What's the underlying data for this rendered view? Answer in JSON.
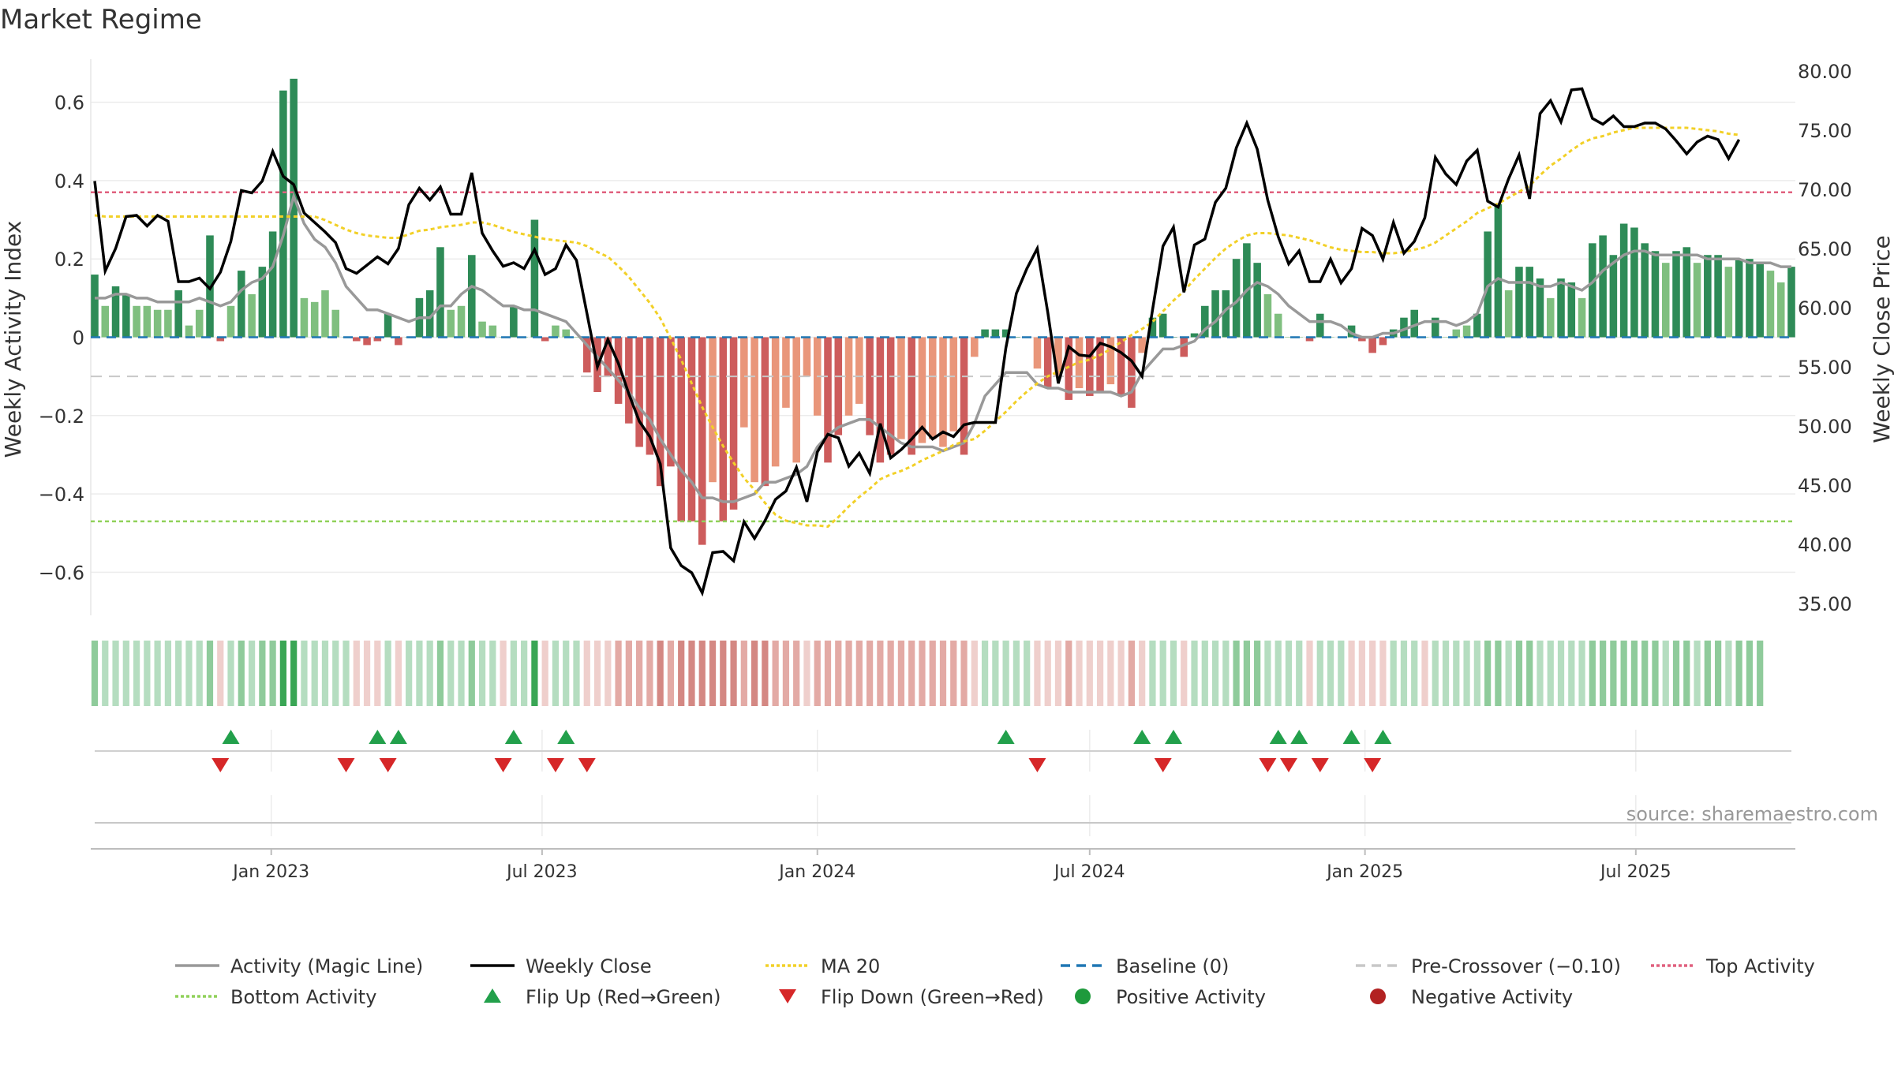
{
  "title": "Market Regime",
  "source": "source: sharemaestro.com",
  "colors": {
    "bar_pos_strong": "#2e8b57",
    "bar_pos_light": "#7fbf7f",
    "bar_neg_strong": "#cd5c5c",
    "bar_neg_light": "#e9967a",
    "close": "#000000",
    "activity_line": "#999999",
    "ma20": "#f2d027",
    "baseline": "#1f77b4",
    "pre_crossover": "#c8c8c8",
    "top_activity": "#e0607e",
    "bottom_activity": "#90d15a",
    "flip_up": "#22a04b",
    "flip_down": "#d62728",
    "positive_activity": "#1e9a3c",
    "negative_activity": "#b22222"
  },
  "chart_data": {
    "type": "bar",
    "title": "Market Regime",
    "x_start": "2022-09-05",
    "x_ticks": [
      "Jan 2023",
      "Jul 2023",
      "Jan 2024",
      "Jul 2024",
      "Jan 2025",
      "Jul 2025"
    ],
    "x_tick_dates": [
      "2023-01-01",
      "2023-07-01",
      "2024-01-01",
      "2024-07-01",
      "2025-01-01",
      "2025-07-01"
    ],
    "y_left": {
      "label": "Weekly Activity Index",
      "ylim": [
        -0.71,
        0.71
      ],
      "ticks": [
        0.6,
        0.4,
        0.2,
        0,
        -0.2,
        -0.4,
        -0.6
      ],
      "tick_labels": [
        "0.6",
        "0.4",
        "0.2",
        "0",
        "−0.2",
        "−0.4",
        "−0.6"
      ]
    },
    "y_right": {
      "label": "Weekly Close Price",
      "ylim": [
        34.0,
        81.0
      ],
      "ticks": [
        80,
        75,
        70,
        65,
        60,
        55,
        50,
        45,
        40,
        35
      ],
      "tick_labels": [
        "80.00",
        "75.00",
        "70.00",
        "65.00",
        "60.00",
        "55.00",
        "50.00",
        "45.00",
        "40.00",
        "35.00"
      ]
    },
    "reference_lines": {
      "baseline": 0,
      "pre_crossover": -0.1,
      "top_activity": 0.37,
      "bottom_activity": -0.47
    },
    "series": [
      {
        "name": "Weekly Activity Index",
        "values": [
          0.16,
          0.08,
          0.13,
          0.11,
          0.08,
          0.08,
          0.07,
          0.07,
          0.12,
          0.03,
          0.07,
          0.26,
          -0.01,
          0.08,
          0.17,
          0.11,
          0.18,
          0.27,
          0.63,
          0.66,
          0.1,
          0.09,
          0.12,
          0.07,
          0.0,
          -0.01,
          -0.02,
          -0.01,
          0.06,
          -0.02,
          0.0,
          0.1,
          0.12,
          0.23,
          0.07,
          0.08,
          0.21,
          0.04,
          0.03,
          0.0,
          0.08,
          0.0,
          0.3,
          -0.01,
          0.03,
          0.02,
          0.0,
          -0.09,
          -0.14,
          -0.1,
          -0.17,
          -0.22,
          -0.28,
          -0.3,
          -0.38,
          -0.33,
          -0.47,
          -0.47,
          -0.53,
          -0.37,
          -0.47,
          -0.44,
          -0.23,
          -0.37,
          -0.38,
          -0.33,
          -0.18,
          -0.32,
          -0.1,
          -0.2,
          -0.32,
          -0.25,
          -0.2,
          -0.17,
          -0.25,
          -0.32,
          -0.3,
          -0.26,
          -0.3,
          -0.27,
          -0.26,
          -0.28,
          -0.24,
          -0.3,
          -0.05,
          0.02,
          0.02,
          0.02,
          0.0,
          0.0,
          -0.08,
          -0.13,
          -0.1,
          -0.16,
          -0.13,
          -0.15,
          -0.14,
          -0.12,
          -0.15,
          -0.18,
          -0.04,
          0.05,
          0.06,
          0.0,
          -0.05,
          0.01,
          0.08,
          0.12,
          0.12,
          0.2,
          0.24,
          0.19,
          0.11,
          0.06,
          0.0,
          0.0,
          -0.01,
          0.06,
          0.0,
          0.0,
          0.03,
          -0.01,
          -0.04,
          -0.02,
          0.02,
          0.05,
          0.07,
          0.0,
          0.05,
          0.0,
          0.02,
          0.03,
          0.06,
          0.27,
          0.34,
          0.12,
          0.18,
          0.18,
          0.15,
          0.1,
          0.15,
          0.14,
          0.1,
          0.24,
          0.26,
          0.21,
          0.29,
          0.28,
          0.24,
          0.22,
          0.19,
          0.22,
          0.23,
          0.19,
          0.21,
          0.21,
          0.18,
          0.2,
          0.2,
          0.19,
          0.17,
          0.14,
          0.18
        ]
      },
      {
        "name": "Activity (Magic Line)",
        "values": [
          0.1,
          0.1,
          0.11,
          0.11,
          0.1,
          0.1,
          0.09,
          0.09,
          0.09,
          0.09,
          0.1,
          0.09,
          0.08,
          0.09,
          0.12,
          0.14,
          0.15,
          0.18,
          0.26,
          0.36,
          0.29,
          0.25,
          0.23,
          0.19,
          0.13,
          0.1,
          0.07,
          0.07,
          0.06,
          0.05,
          0.04,
          0.05,
          0.05,
          0.08,
          0.08,
          0.11,
          0.13,
          0.12,
          0.1,
          0.08,
          0.08,
          0.07,
          0.07,
          0.06,
          0.05,
          0.04,
          0.01,
          -0.02,
          -0.05,
          -0.08,
          -0.11,
          -0.14,
          -0.18,
          -0.21,
          -0.26,
          -0.3,
          -0.34,
          -0.37,
          -0.41,
          -0.41,
          -0.42,
          -0.42,
          -0.41,
          -0.4,
          -0.37,
          -0.37,
          -0.36,
          -0.35,
          -0.33,
          -0.28,
          -0.25,
          -0.23,
          -0.22,
          -0.21,
          -0.21,
          -0.23,
          -0.25,
          -0.27,
          -0.28,
          -0.28,
          -0.28,
          -0.29,
          -0.28,
          -0.27,
          -0.22,
          -0.15,
          -0.12,
          -0.09,
          -0.09,
          -0.09,
          -0.12,
          -0.13,
          -0.13,
          -0.14,
          -0.14,
          -0.14,
          -0.14,
          -0.14,
          -0.15,
          -0.14,
          -0.09,
          -0.06,
          -0.03,
          -0.03,
          -0.02,
          -0.01,
          0.02,
          0.04,
          0.07,
          0.09,
          0.12,
          0.14,
          0.13,
          0.11,
          0.08,
          0.06,
          0.04,
          0.04,
          0.04,
          0.03,
          0.01,
          0.0,
          0.0,
          0.01,
          0.01,
          0.02,
          0.03,
          0.04,
          0.04,
          0.04,
          0.03,
          0.04,
          0.06,
          0.13,
          0.15,
          0.14,
          0.14,
          0.14,
          0.13,
          0.13,
          0.14,
          0.13,
          0.12,
          0.14,
          0.17,
          0.19,
          0.21,
          0.22,
          0.22,
          0.21,
          0.21,
          0.21,
          0.21,
          0.21,
          0.2,
          0.2,
          0.2,
          0.2,
          0.19,
          0.19,
          0.19,
          0.18,
          0.18
        ]
      },
      {
        "name": "Weekly Close",
        "values": [
          70.7,
          63.1,
          65.0,
          67.7,
          67.8,
          66.9,
          67.8,
          67.3,
          62.2,
          62.2,
          62.5,
          61.6,
          63.0,
          65.6,
          69.9,
          69.7,
          70.7,
          73.2,
          71.1,
          70.4,
          68.0,
          67.2,
          66.4,
          65.5,
          63.3,
          62.9,
          63.6,
          64.3,
          63.7,
          65.0,
          68.7,
          70.1,
          69.1,
          70.2,
          67.9,
          67.9,
          71.4,
          66.3,
          64.8,
          63.5,
          63.8,
          63.3,
          64.9,
          62.8,
          63.3,
          65.3,
          64.0,
          59.5,
          55.0,
          57.3,
          55.3,
          52.7,
          50.4,
          49.1,
          46.8,
          39.7,
          38.2,
          37.6,
          35.9,
          39.3,
          39.4,
          38.6,
          41.9,
          40.5,
          42.0,
          43.8,
          44.5,
          46.5,
          43.6,
          47.8,
          49.3,
          49.0,
          46.6,
          47.7,
          46.0,
          50.2,
          47.3,
          48.0,
          48.9,
          49.9,
          48.9,
          49.5,
          49.1,
          50.1,
          50.3,
          50.3,
          50.3,
          56.6,
          61.2,
          63.3,
          65.0,
          59.6,
          53.6,
          56.7,
          56.0,
          55.9,
          57.0,
          56.7,
          56.2,
          55.5,
          54.2,
          59.8,
          65.2,
          66.8,
          61.3,
          65.3,
          65.8,
          68.9,
          70.1,
          73.5,
          75.6,
          73.4,
          69.1,
          66.0,
          63.7,
          64.8,
          62.2,
          62.2,
          64.1,
          62.1,
          63.3,
          66.7,
          66.1,
          64.1,
          67.2,
          64.6,
          65.6,
          67.6,
          72.7,
          71.3,
          70.4,
          72.4,
          73.3,
          69.0,
          68.5,
          70.9,
          72.9,
          69.2,
          76.4,
          77.5,
          75.7,
          78.4,
          78.5,
          76.0,
          75.5,
          76.2,
          75.3,
          75.3,
          75.6,
          75.6,
          75.1,
          74.1,
          73.0,
          74.0,
          74.5,
          74.2,
          72.6,
          74.2
        ]
      },
      {
        "name": "MA 20",
        "values": [
          67.8,
          67.7,
          67.7,
          67.7,
          67.7,
          67.7,
          67.7,
          67.7,
          67.7,
          67.7,
          67.7,
          67.7,
          67.7,
          67.7,
          67.7,
          67.7,
          67.7,
          67.7,
          67.7,
          67.7,
          67.7,
          67.7,
          67.4,
          67.0,
          66.6,
          66.3,
          66.1,
          66.0,
          65.9,
          65.9,
          66.2,
          66.5,
          66.6,
          66.8,
          66.9,
          67.0,
          67.2,
          67.2,
          67.0,
          66.7,
          66.4,
          66.2,
          66.0,
          65.8,
          65.7,
          65.6,
          65.5,
          65.2,
          64.7,
          64.3,
          63.5,
          62.6,
          61.5,
          60.4,
          59.1,
          57.4,
          55.6,
          53.6,
          51.6,
          49.9,
          48.3,
          46.9,
          45.6,
          44.6,
          43.5,
          42.5,
          42.0,
          41.8,
          41.6,
          41.6,
          41.5,
          42.3,
          43.2,
          44.0,
          44.7,
          45.5,
          45.9,
          46.2,
          46.6,
          47.1,
          47.5,
          47.9,
          48.4,
          48.7,
          48.9,
          49.6,
          50.4,
          51.2,
          52.1,
          52.9,
          53.6,
          54.2,
          54.6,
          55.0,
          55.4,
          55.6,
          56.0,
          56.5,
          57.1,
          57.7,
          58.2,
          58.8,
          59.7,
          60.6,
          61.4,
          62.4,
          63.3,
          64.2,
          65.0,
          65.6,
          66.1,
          66.3,
          66.3,
          66.2,
          66.1,
          65.9,
          65.7,
          65.4,
          65.1,
          64.9,
          64.8,
          64.7,
          64.7,
          64.6,
          64.6,
          64.7,
          64.9,
          65.1,
          65.5,
          66.1,
          66.7,
          67.3,
          68.0,
          68.4,
          68.8,
          69.3,
          69.8,
          70.3,
          71.2,
          72.0,
          72.6,
          73.3,
          73.9,
          74.3,
          74.5,
          74.8,
          75.0,
          75.2,
          75.2,
          75.2,
          75.2,
          75.2,
          75.2,
          75.1,
          75.0,
          74.9,
          74.7,
          74.6
        ]
      }
    ],
    "regime_strip": [
      1,
      1,
      1,
      1,
      1,
      1,
      1,
      1,
      1,
      1,
      1,
      1,
      -1,
      1,
      1,
      1,
      1,
      1,
      2,
      2,
      1,
      1,
      1,
      1,
      1,
      -1,
      -1,
      -1,
      1,
      -1,
      1,
      1,
      1,
      1,
      1,
      1,
      1,
      1,
      1,
      -1,
      1,
      1,
      2,
      -1,
      1,
      1,
      1,
      -1,
      -1,
      -1,
      -1,
      -1,
      -1,
      -1,
      -1,
      -1,
      -1,
      -1,
      -1,
      -1,
      -1,
      -1,
      -1,
      -1,
      -1,
      -1,
      -1,
      -1,
      -1,
      -1,
      -1,
      -1,
      -1,
      -1,
      -1,
      -1,
      -1,
      -1,
      -1,
      -1,
      -1,
      -1,
      -1,
      -1,
      -1,
      1,
      1,
      1,
      1,
      1,
      -1,
      -1,
      -1,
      -1,
      -1,
      -1,
      -1,
      -1,
      -1,
      -1,
      -1,
      1,
      1,
      1,
      -1,
      1,
      1,
      1,
      1,
      1,
      1,
      1,
      1,
      1,
      1,
      1,
      -1,
      1,
      1,
      1,
      -1,
      -1,
      -1,
      -1,
      1,
      1,
      1,
      -1,
      1,
      1,
      1,
      1,
      1,
      1,
      1,
      1,
      1,
      1,
      1,
      1,
      1,
      1,
      1,
      1,
      1,
      1,
      1,
      1,
      1,
      1,
      1,
      1,
      1,
      1,
      1,
      1,
      1,
      1,
      1,
      1
    ],
    "flip_up_weeks": [
      13,
      27,
      29,
      40,
      45,
      87,
      100,
      103,
      113,
      115,
      120,
      123
    ],
    "flip_down_weeks": [
      12,
      24,
      28,
      39,
      44,
      47,
      90,
      102,
      112,
      114,
      117,
      122
    ]
  },
  "legend": [
    {
      "label": "Activity (Magic Line)",
      "kind": "line",
      "color": "#999999",
      "dash": ""
    },
    {
      "label": "Weekly Close",
      "kind": "line",
      "color": "#000000",
      "dash": ""
    },
    {
      "label": "MA 20",
      "kind": "line",
      "color": "#f2d027",
      "dash": "4,3"
    },
    {
      "label": "Baseline (0)",
      "kind": "line",
      "color": "#1f77b4",
      "dash": "12,8"
    },
    {
      "label": "Pre-Crossover (−0.10)",
      "kind": "line",
      "color": "#c8c8c8",
      "dash": "12,8"
    },
    {
      "label": "Top Activity",
      "kind": "line",
      "color": "#e0607e",
      "dash": "4,3"
    },
    {
      "label": "Bottom Activity",
      "kind": "line",
      "color": "#90d15a",
      "dash": "4,3"
    },
    {
      "label": "Flip Up (Red→Green)",
      "kind": "tri-up",
      "color": "#22a04b",
      "dash": ""
    },
    {
      "label": "Flip Down (Green→Red)",
      "kind": "tri-down",
      "color": "#d62728",
      "dash": ""
    },
    {
      "label": "Positive Activity",
      "kind": "dot",
      "color": "#1e9a3c",
      "dash": ""
    },
    {
      "label": "Negative Activity",
      "kind": "dot",
      "color": "#b22222",
      "dash": ""
    }
  ]
}
